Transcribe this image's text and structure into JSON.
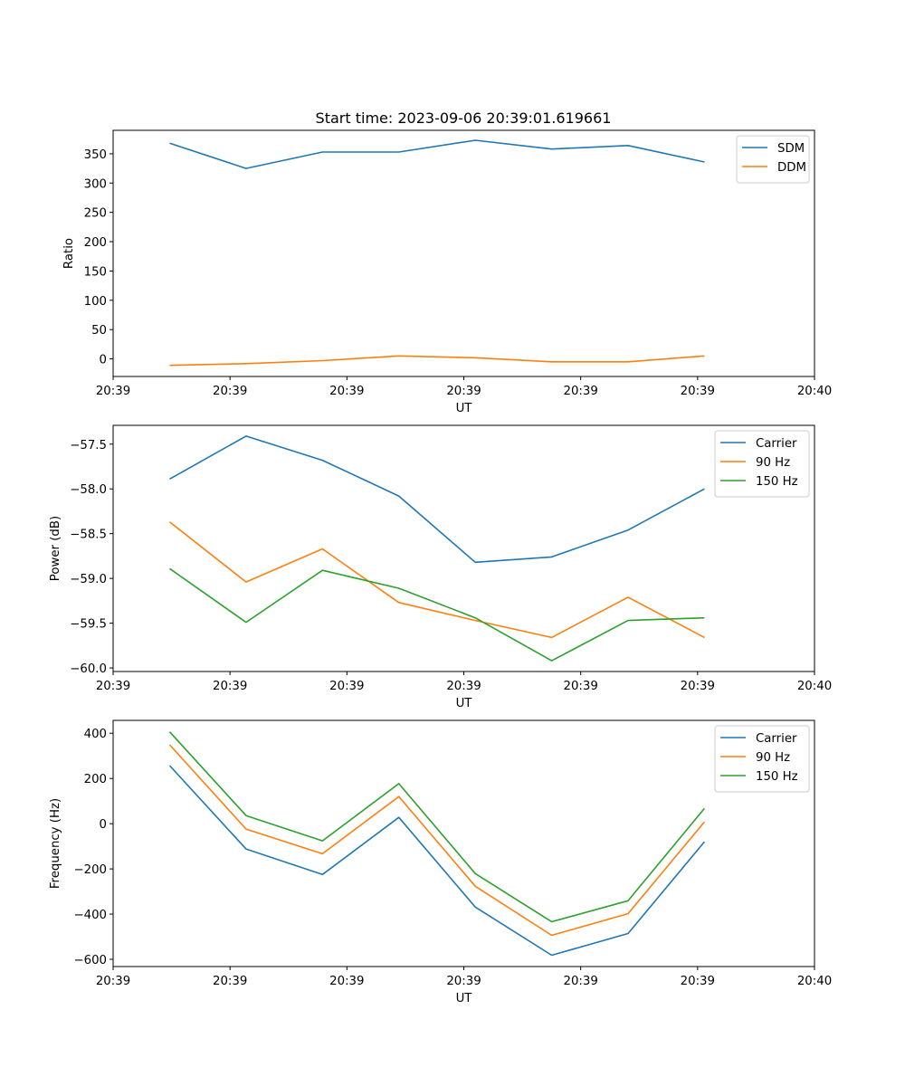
{
  "figure_title": "Start time: 2023-09-06 20:39:01.619661",
  "chart_data": [
    {
      "type": "line",
      "title": "Start time: 2023-09-06 20:39:01.619661",
      "xlabel": "UT",
      "ylabel": "Ratio",
      "x_tick_labels": [
        "20:39",
        "20:39",
        "20:39",
        "20:39",
        "20:39",
        "20:39",
        "20:40"
      ],
      "y_ticks": [
        0,
        50,
        100,
        150,
        200,
        250,
        300,
        350
      ],
      "y_tick_labels": [
        "0",
        "50",
        "100",
        "150",
        "200",
        "250",
        "300",
        "350"
      ],
      "ylim": [
        -30,
        390
      ],
      "x_index": [
        1,
        2,
        3,
        4,
        5,
        6,
        7,
        8
      ],
      "xlim": [
        0.26,
        9.44
      ],
      "x_tick_positions": [
        0.26,
        1.79,
        3.32,
        4.85,
        6.38,
        7.91,
        9.44
      ],
      "legend": "top-right",
      "grid": false,
      "series": [
        {
          "name": "SDM",
          "color": "#1f77b4",
          "values": [
            368,
            325,
            353,
            353,
            373,
            358,
            364,
            336
          ]
        },
        {
          "name": "DDM",
          "color": "#ff7f0e",
          "values": [
            -11,
            -8,
            -3,
            5,
            2,
            -5,
            -5,
            5
          ]
        }
      ]
    },
    {
      "type": "line",
      "title": "",
      "xlabel": "UT",
      "ylabel": "Power (dB)",
      "x_tick_labels": [
        "20:39",
        "20:39",
        "20:39",
        "20:39",
        "20:39",
        "20:39",
        "20:40"
      ],
      "y_ticks": [
        -60.0,
        -59.5,
        -59.0,
        -58.5,
        -58.0,
        -57.5
      ],
      "y_tick_labels": [
        "−60.0",
        "−59.5",
        "−59.0",
        "−58.5",
        "−58.0",
        "−57.5"
      ],
      "ylim": [
        -60.04,
        -57.29
      ],
      "x_index": [
        1,
        2,
        3,
        4,
        5,
        6,
        7,
        8
      ],
      "xlim": [
        0.26,
        9.44
      ],
      "x_tick_positions": [
        0.26,
        1.79,
        3.32,
        4.85,
        6.38,
        7.91,
        9.44
      ],
      "legend": "top-right",
      "grid": false,
      "series": [
        {
          "name": "Carrier",
          "color": "#1f77b4",
          "values": [
            -57.89,
            -57.41,
            -57.68,
            -58.08,
            -58.82,
            -58.76,
            -58.46,
            -58.0
          ]
        },
        {
          "name": "90 Hz",
          "color": "#ff7f0e",
          "values": [
            -58.37,
            -59.04,
            -58.67,
            -59.27,
            -59.47,
            -59.66,
            -59.21,
            -59.66
          ]
        },
        {
          "name": "150 Hz",
          "color": "#2ca02c",
          "values": [
            -58.89,
            -59.49,
            -58.91,
            -59.11,
            -59.44,
            -59.92,
            -59.47,
            -59.44
          ]
        }
      ]
    },
    {
      "type": "line",
      "title": "",
      "xlabel": "UT",
      "ylabel": "Frequency (Hz)",
      "x_tick_labels": [
        "20:39",
        "20:39",
        "20:39",
        "20:39",
        "20:39",
        "20:39",
        "20:40"
      ],
      "y_ticks": [
        -600,
        -400,
        -200,
        0,
        200,
        400
      ],
      "y_tick_labels": [
        "−600",
        "−400",
        "−200",
        "0",
        "200",
        "400"
      ],
      "ylim": [
        -632,
        457
      ],
      "x_index": [
        1,
        2,
        3,
        4,
        5,
        6,
        7,
        8
      ],
      "xlim": [
        0.26,
        9.44
      ],
      "x_tick_positions": [
        0.26,
        1.79,
        3.32,
        4.85,
        6.38,
        7.91,
        9.44
      ],
      "legend": "top-right",
      "grid": false,
      "series": [
        {
          "name": "Carrier",
          "color": "#1f77b4",
          "values": [
            257,
            -112,
            -225,
            28,
            -369,
            -582,
            -486,
            -80
          ]
        },
        {
          "name": "90 Hz",
          "color": "#ff7f0e",
          "values": [
            349,
            -24,
            -133,
            120,
            -277,
            -494,
            -398,
            8
          ]
        },
        {
          "name": "150 Hz",
          "color": "#2ca02c",
          "values": [
            406,
            36,
            -76,
            177,
            -221,
            -434,
            -341,
            68
          ]
        }
      ]
    }
  ]
}
